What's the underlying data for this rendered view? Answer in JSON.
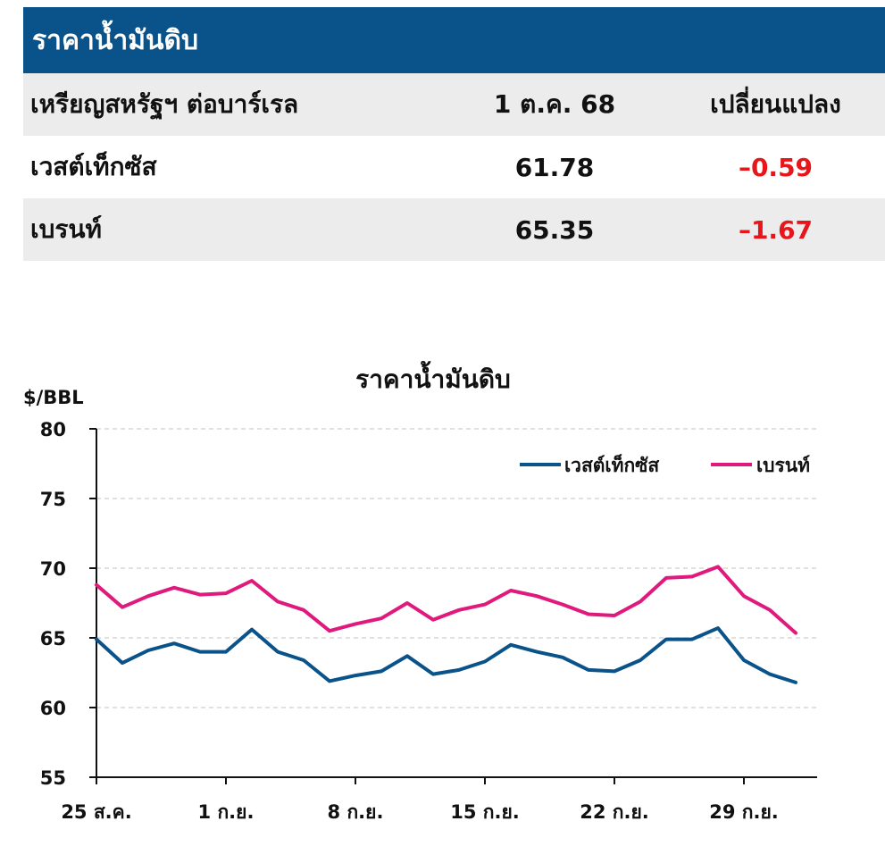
{
  "table": {
    "title": "ราคาน้ำมันดิบ",
    "header": {
      "label": "เหรียญสหรัฐฯ ต่อบาร์เรล",
      "date": "1 ต.ค. 68",
      "change": "เปลี่ยนแปลง"
    },
    "rows": [
      {
        "name": "เวสต์เท็กซัส",
        "price": "61.78",
        "change": "–0.59"
      },
      {
        "name": "เบรนท์",
        "price": "65.35",
        "change": "–1.67"
      }
    ],
    "colors": {
      "header_bg": "#0a528a",
      "shade": "#ececec",
      "negative": "#e8161b"
    }
  },
  "chart_data": {
    "type": "line",
    "title": "ราคาน้ำมันดิบ",
    "ylabel": "$/BBL",
    "ylim": [
      55,
      80
    ],
    "yticks": [
      "80",
      "75",
      "70",
      "65",
      "60",
      "55"
    ],
    "x_tick_labels": [
      "25 ส.ค.",
      "1 ก.ย.",
      "8 ก.ย.",
      "15 ก.ย.",
      "22 ก.ย.",
      "29 ก.ย."
    ],
    "x": [
      "25 ส.ค.",
      "26 ส.ค.",
      "27 ส.ค.",
      "28 ส.ค.",
      "29 ส.ค.",
      "1 ก.ย.",
      "2 ก.ย.",
      "3 ก.ย.",
      "4 ก.ย.",
      "5 ก.ย.",
      "8 ก.ย.",
      "9 ก.ย.",
      "10 ก.ย.",
      "11 ก.ย.",
      "12 ก.ย.",
      "15 ก.ย.",
      "16 ก.ย.",
      "17 ก.ย.",
      "18 ก.ย.",
      "19 ก.ย.",
      "22 ก.ย.",
      "23 ก.ย.",
      "24 ก.ย.",
      "25 ก.ย.",
      "26 ก.ย.",
      "29 ก.ย.",
      "30 ก.ย.",
      "1 ต.ค."
    ],
    "series": [
      {
        "name": "เวสต์เท็กซัส",
        "color": "#0a528a",
        "values": [
          64.9,
          63.2,
          64.1,
          64.6,
          64.0,
          64.0,
          65.6,
          64.0,
          63.4,
          61.9,
          62.3,
          62.6,
          63.7,
          62.4,
          62.7,
          63.3,
          64.5,
          64.0,
          63.6,
          62.7,
          62.6,
          63.4,
          64.9,
          64.9,
          65.7,
          63.4,
          62.4,
          61.8
        ]
      },
      {
        "name": "เบรนท์",
        "color": "#e0197d",
        "values": [
          68.8,
          67.2,
          68.0,
          68.6,
          68.1,
          68.2,
          69.1,
          67.6,
          67.0,
          65.5,
          66.0,
          66.4,
          67.5,
          66.3,
          67.0,
          67.4,
          68.4,
          68.0,
          67.4,
          66.7,
          66.6,
          67.6,
          69.3,
          69.4,
          70.1,
          68.0,
          67.0,
          65.35
        ]
      }
    ],
    "grid": "horizontal dashed",
    "legend": "top-right"
  }
}
